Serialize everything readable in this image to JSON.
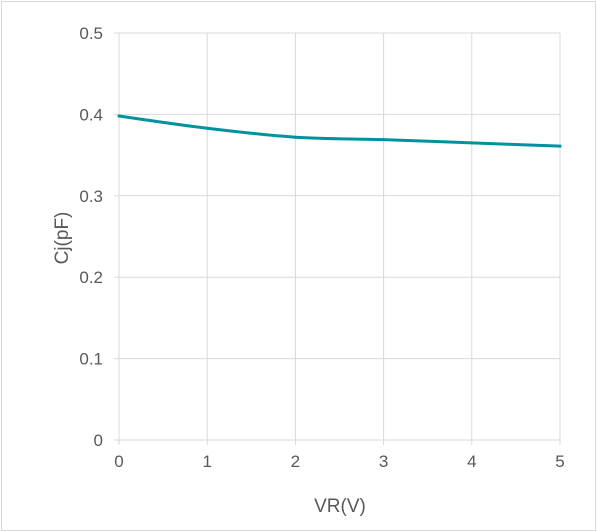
{
  "chart_data": {
    "type": "line",
    "title": "",
    "xlabel": "VR(V)",
    "ylabel": "Cj(pF)",
    "xlim": [
      0,
      5
    ],
    "ylim": [
      0,
      0.5
    ],
    "x_ticks": [
      "0",
      "1",
      "2",
      "3",
      "4",
      "5"
    ],
    "y_ticks": [
      "0",
      "0.1",
      "0.2",
      "0.3",
      "0.4",
      "0.5"
    ],
    "grid": true,
    "legend": "none",
    "series": [
      {
        "x": [
          0,
          1,
          2,
          3,
          4,
          5
        ],
        "y": [
          0.398,
          0.383,
          0.372,
          0.369,
          0.365,
          0.361
        ],
        "color": "#00929f"
      }
    ]
  }
}
